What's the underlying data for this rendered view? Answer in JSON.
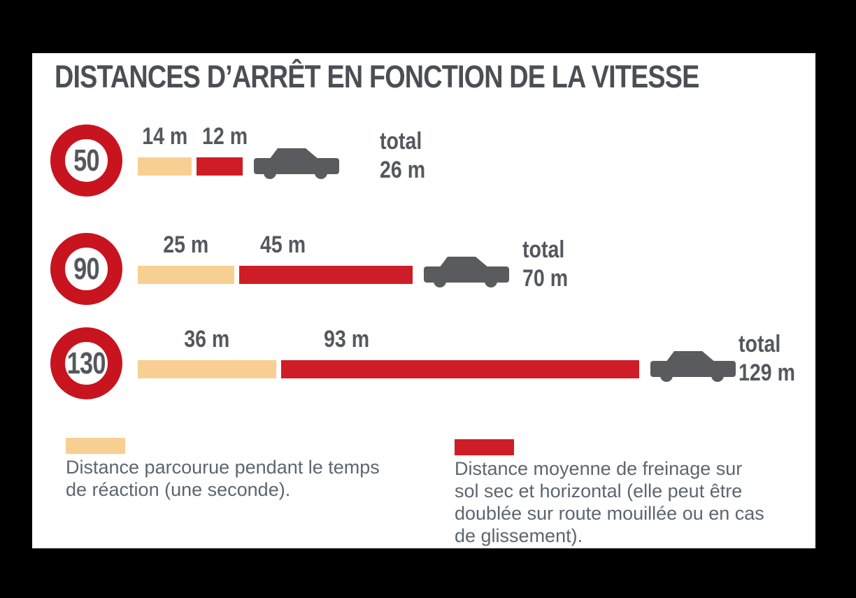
{
  "title": "DISTANCES D’ARRÊT EN FONCTION DE LA VITESSE",
  "rows": [
    {
      "speed_sign": "50",
      "reaction_m": 14,
      "braking_m": 12,
      "reaction_label": "14 m",
      "braking_label": "12 m",
      "total_caption": "total",
      "total_label": "26 m"
    },
    {
      "speed_sign": "90",
      "reaction_m": 25,
      "braking_m": 45,
      "reaction_label": "25 m",
      "braking_label": "45 m",
      "total_caption": "total",
      "total_label": "70 m"
    },
    {
      "speed_sign": "130",
      "reaction_m": 36,
      "braking_m": 93,
      "reaction_label": "36 m",
      "braking_label": "93 m",
      "total_caption": "total",
      "total_label": "129 m"
    }
  ],
  "legend": [
    {
      "swatch": "reaction",
      "lines": [
        "Distance parcourue pendant le temps",
        "de réaction (une seconde)."
      ]
    },
    {
      "swatch": "braking",
      "lines": [
        "Distance moyenne de freinage sur",
        "sol sec et horizontal (elle peut être",
        "doublée sur route mouillée ou en cas",
        "de glissement)."
      ]
    }
  ],
  "colors": {
    "background": "#000000",
    "panel": "#ffffff",
    "title_text": "#4a4f55",
    "label_text": "#54585e",
    "reaction": "#f8cf92",
    "braking": "#ce1d26",
    "sign_red": "#c8141e",
    "car": "#595b5e",
    "legend_text": "#5c6670"
  },
  "chart_data": {
    "type": "bar",
    "orientation": "horizontal",
    "stacked": true,
    "title": "DISTANCES D’ARRÊT EN FONCTION DE LA VITESSE",
    "categories": [
      "50",
      "90",
      "130"
    ],
    "category_meaning": "vitesse (km/h) sur panneau de limitation",
    "series": [
      {
        "name": "Distance parcourue pendant le temps de réaction (une seconde)",
        "values": [
          14,
          25,
          36
        ],
        "color": "#f8cf92"
      },
      {
        "name": "Distance moyenne de freinage sur sol sec et horizontal",
        "values": [
          12,
          45,
          93
        ],
        "color": "#ce1d26"
      }
    ],
    "totals": [
      26,
      70,
      129
    ],
    "unit": "m",
    "legend_position": "bottom",
    "grid": false
  }
}
